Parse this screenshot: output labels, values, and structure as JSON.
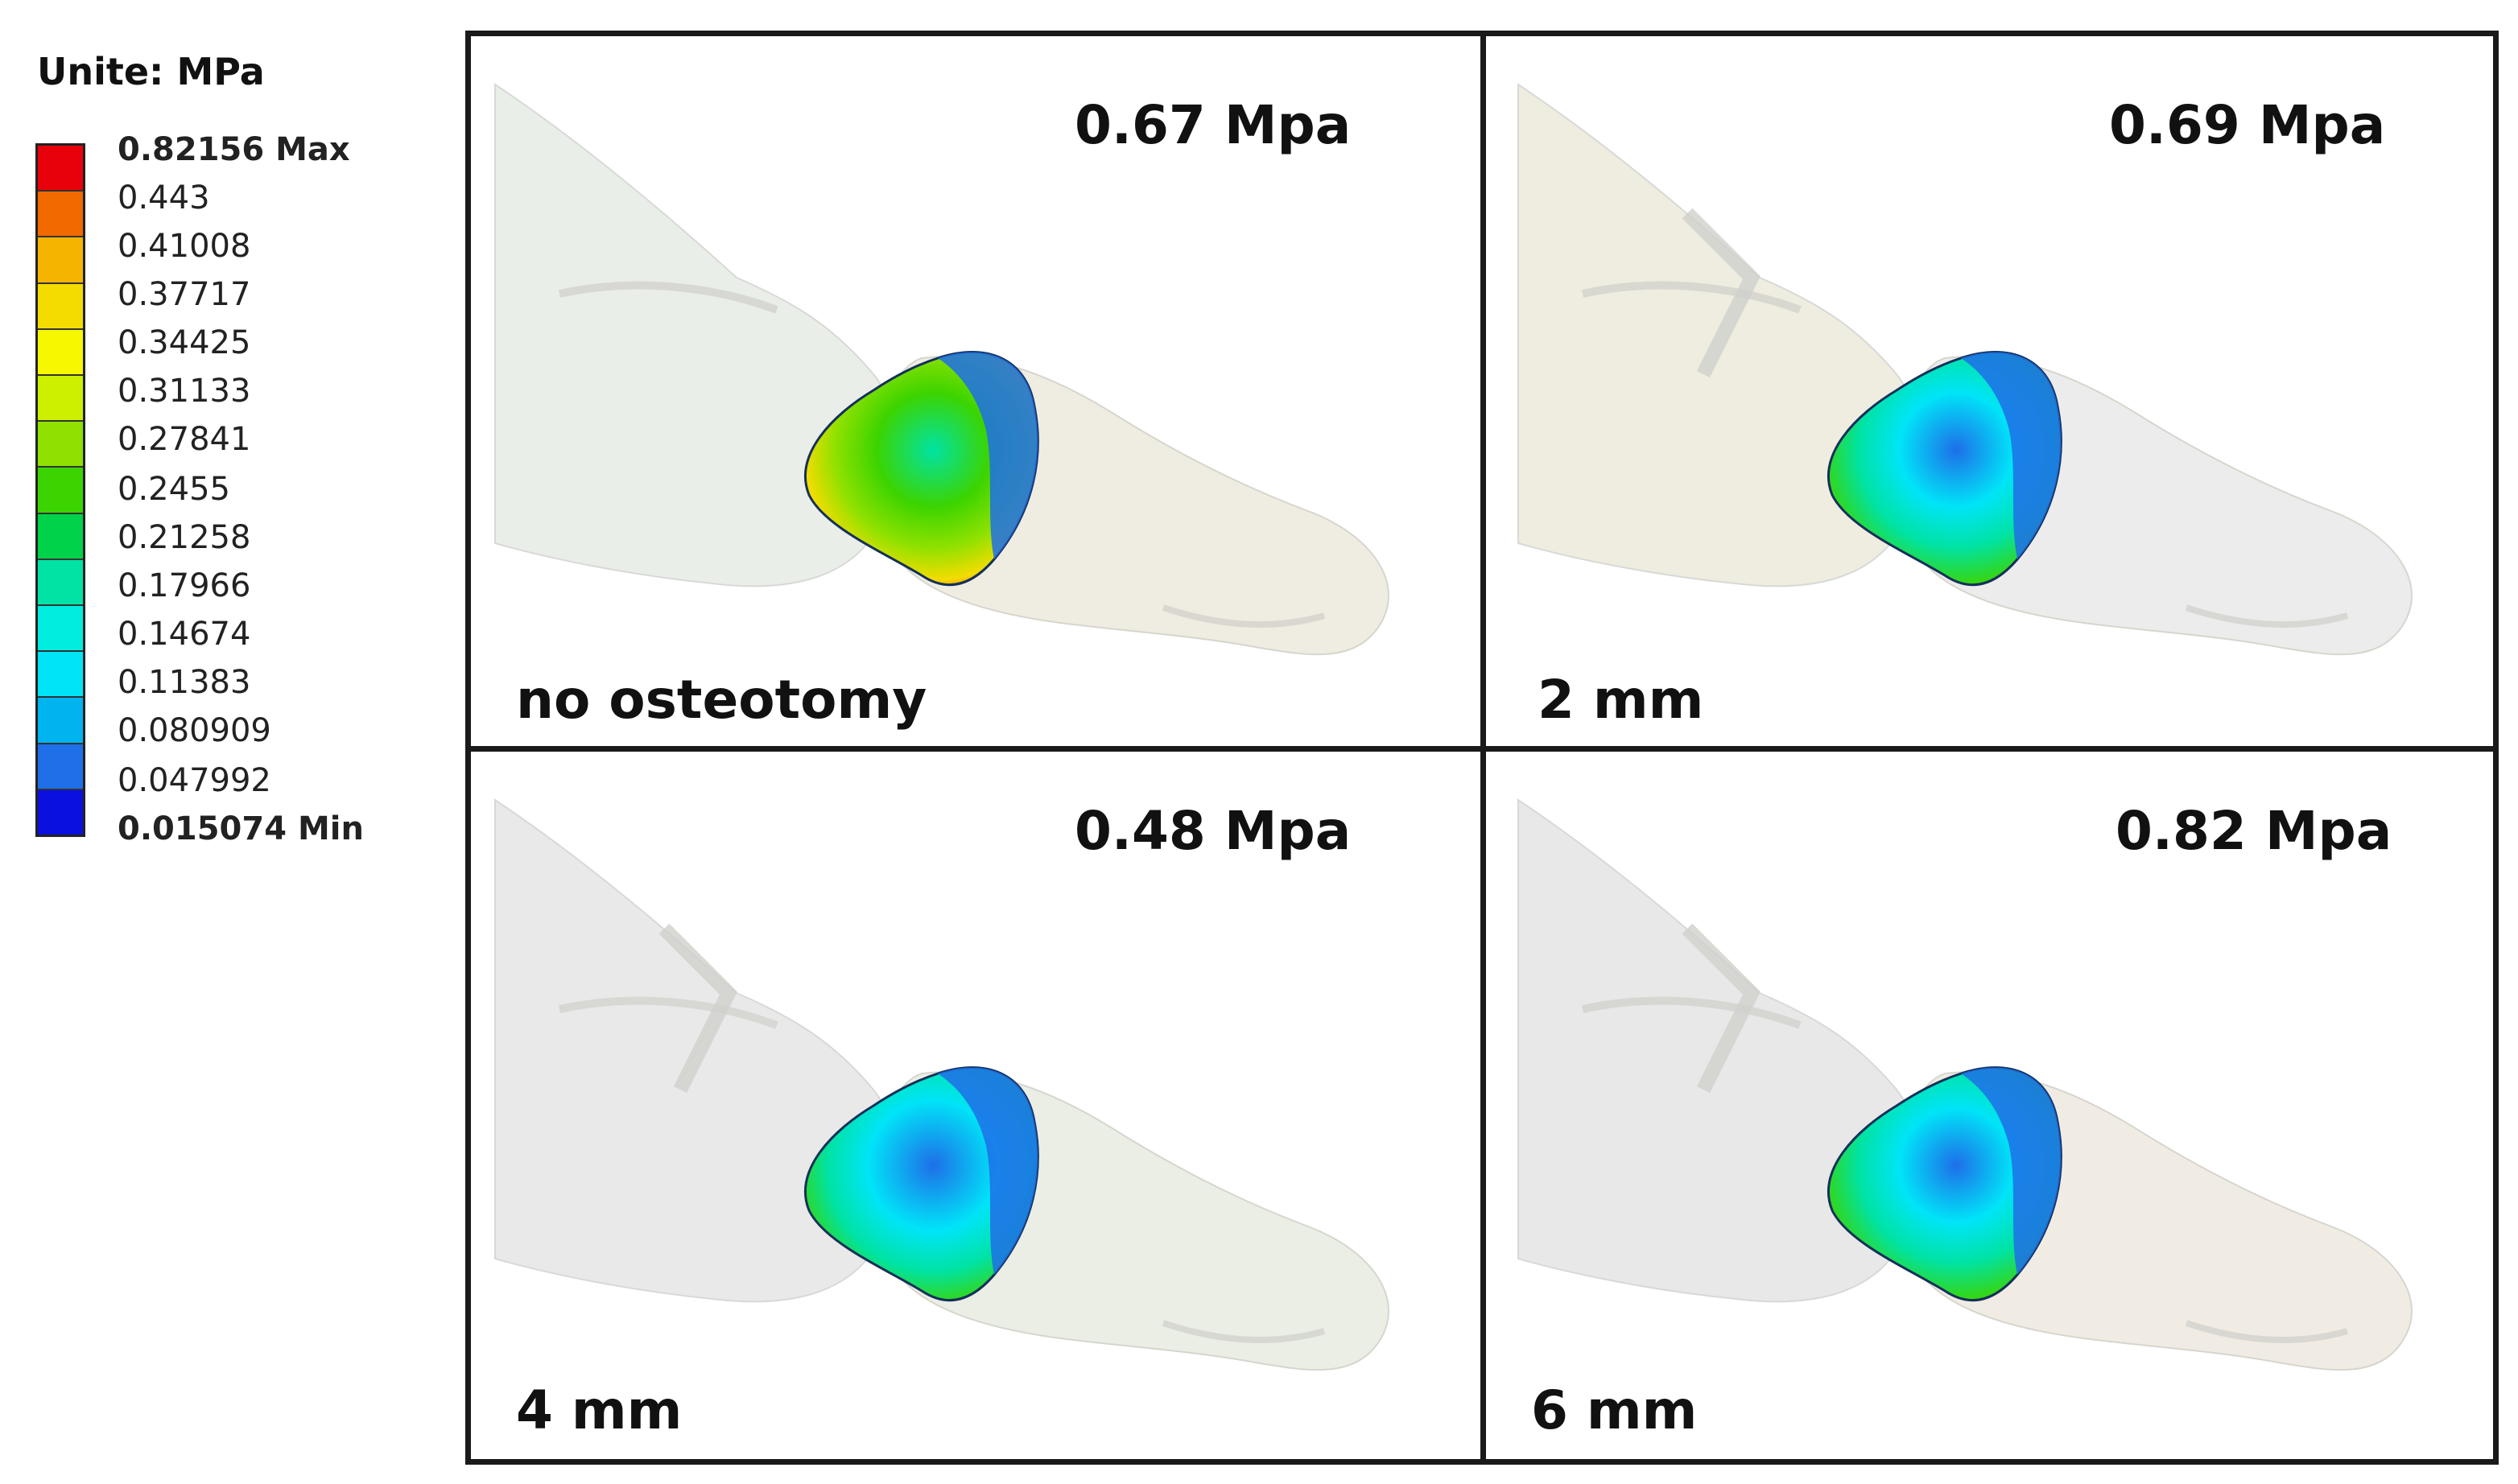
{
  "legend": {
    "title": "Unite: MPa",
    "entries": [
      {
        "label": "0.82156 Max",
        "color": "#e8000b"
      },
      {
        "label": "0.443",
        "color": "#f06a00"
      },
      {
        "label": "0.41008",
        "color": "#f5b400"
      },
      {
        "label": "0.37717",
        "color": "#f4dc00"
      },
      {
        "label": "0.34425",
        "color": "#f7f700"
      },
      {
        "label": "0.31133",
        "color": "#cdef00"
      },
      {
        "label": "0.27841",
        "color": "#8ee100"
      },
      {
        "label": "0.2455",
        "color": "#3cd400"
      },
      {
        "label": "0.21258",
        "color": "#00d34a"
      },
      {
        "label": "0.17966",
        "color": "#00e3a4"
      },
      {
        "label": "0.14674",
        "color": "#00ede0"
      },
      {
        "label": "0.11383",
        "color": "#00e4f8"
      },
      {
        "label": "0.080909",
        "color": "#00b4f0"
      },
      {
        "label": "0.047992",
        "color": "#1e6fe8"
      },
      {
        "label": "0.015074 Min",
        "color": "#0a10e0"
      }
    ]
  },
  "panels": [
    {
      "label": "no osteotomy",
      "stress": "0.67 Mpa",
      "hot": "high",
      "bone_tint": "#e9eee8",
      "joint_tint": "#efece0"
    },
    {
      "label": "2 mm",
      "stress": "0.69 Mpa",
      "hot": "mid",
      "bone_tint": "#eeeddf",
      "joint_tint": "#ebebeb"
    },
    {
      "label": "4 mm",
      "stress": "0.48 Mpa",
      "hot": "low",
      "bone_tint": "#e8e8e8",
      "joint_tint": "#e9eee4"
    },
    {
      "label": "6 mm",
      "stress": "0.82 Mpa",
      "hot": "mid",
      "bone_tint": "#e7e7e7",
      "joint_tint": "#f1ebe2"
    }
  ]
}
